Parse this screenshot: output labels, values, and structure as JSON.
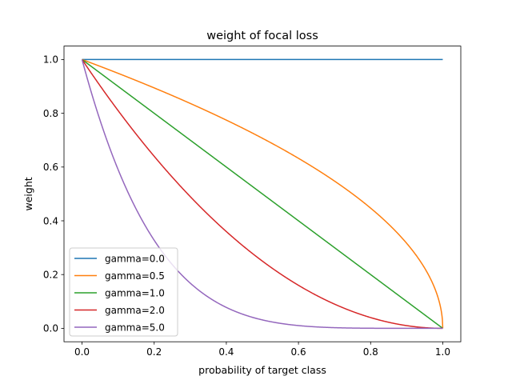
{
  "chart_data": {
    "type": "line",
    "title": "weight of focal loss",
    "xlabel": "probability of target class",
    "ylabel": "weight",
    "xlim": [
      -0.05,
      1.05
    ],
    "ylim": [
      -0.05,
      1.05
    ],
    "xticks": [
      "0.0",
      "0.2",
      "0.4",
      "0.6",
      "0.8",
      "1.0"
    ],
    "yticks": [
      "0.0",
      "0.2",
      "0.4",
      "0.6",
      "0.8",
      "1.0"
    ],
    "grid": false,
    "legend_position": "lower-left",
    "series": [
      {
        "name": "gamma=0.0",
        "gamma": 0.0,
        "color": "#1f77b4"
      },
      {
        "name": "gamma=0.5",
        "gamma": 0.5,
        "color": "#ff7f0e"
      },
      {
        "name": "gamma=1.0",
        "gamma": 1.0,
        "color": "#2ca02c"
      },
      {
        "name": "gamma=2.0",
        "gamma": 2.0,
        "color": "#d62728"
      },
      {
        "name": "gamma=5.0",
        "gamma": 5.0,
        "color": "#9467bd"
      }
    ],
    "x_range": [
      0.0,
      1.0
    ]
  }
}
